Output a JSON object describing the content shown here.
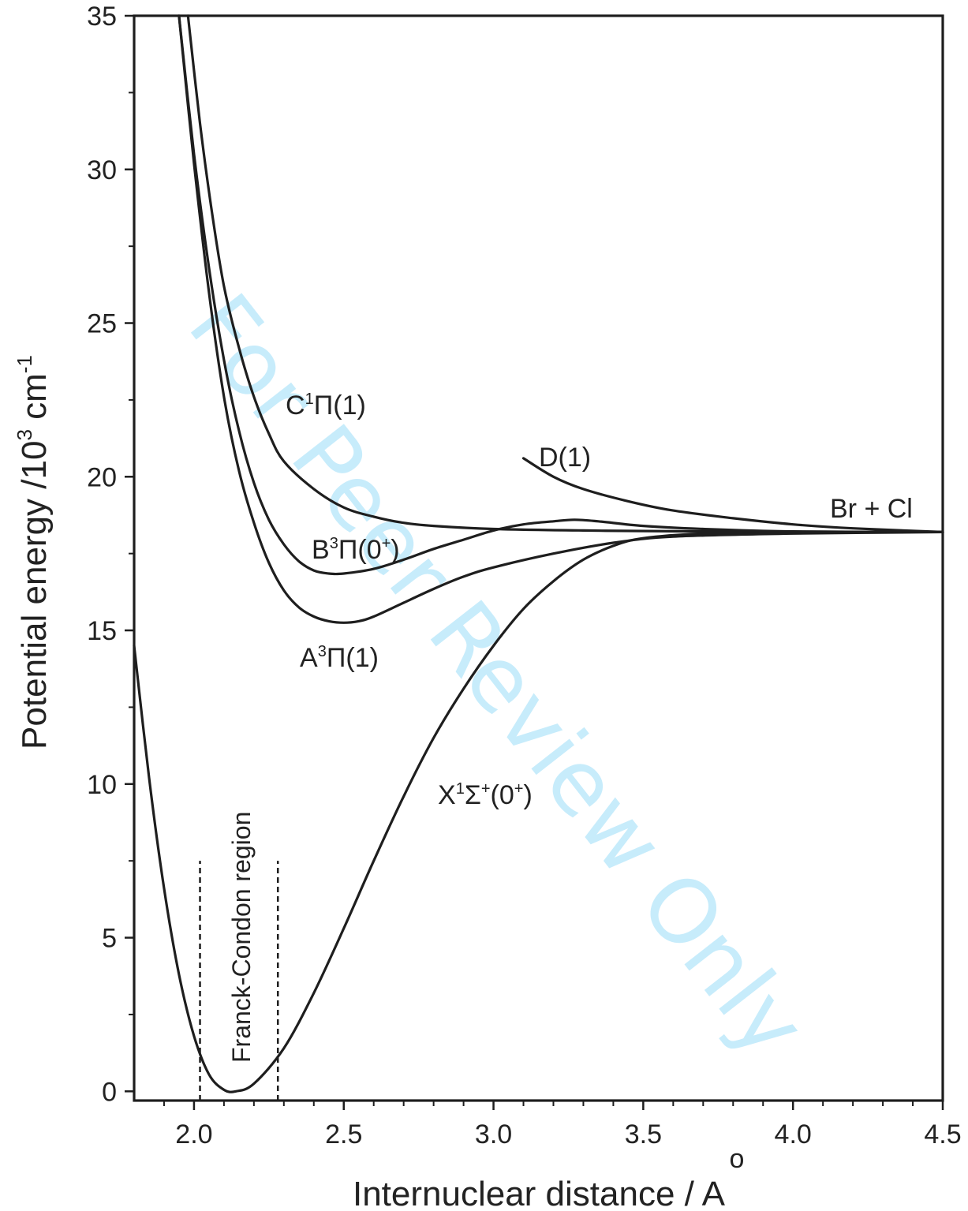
{
  "chart_data": {
    "type": "line",
    "xlabel_main": "Internuclear distance / A",
    "xlabel_ring": "o",
    "ylabel_parts": [
      "Potential energy /10",
      "3",
      " cm",
      "-1"
    ],
    "xlim": [
      1.8,
      4.5
    ],
    "ylim": [
      -0.3,
      35
    ],
    "x_ticks": [
      "2.0",
      "2.5",
      "3.0",
      "3.5",
      "4.0",
      "4.5"
    ],
    "y_ticks": [
      "0",
      "5",
      "10",
      "15",
      "20",
      "25",
      "30",
      "35"
    ],
    "asymptote_label": "Br + Cl",
    "annotation": "Franck-Condon region",
    "franck_condon": [
      2.02,
      2.28
    ],
    "series": [
      {
        "label_parts": [
          "X",
          "1",
          "Σ",
          "+",
          "(0",
          "+",
          ")"
        ],
        "points": [
          [
            1.8,
            14.5
          ],
          [
            1.85,
            10.2
          ],
          [
            1.9,
            6.6
          ],
          [
            1.95,
            3.8
          ],
          [
            2.0,
            1.8
          ],
          [
            2.05,
            0.55
          ],
          [
            2.1,
            0.05
          ],
          [
            2.14,
            0.0
          ],
          [
            2.2,
            0.25
          ],
          [
            2.3,
            1.4
          ],
          [
            2.4,
            3.2
          ],
          [
            2.5,
            5.3
          ],
          [
            2.6,
            7.5
          ],
          [
            2.7,
            9.6
          ],
          [
            2.8,
            11.5
          ],
          [
            2.9,
            13.1
          ],
          [
            3.0,
            14.5
          ],
          [
            3.1,
            15.7
          ],
          [
            3.2,
            16.6
          ],
          [
            3.3,
            17.3
          ],
          [
            3.4,
            17.75
          ],
          [
            3.5,
            18.0
          ],
          [
            3.7,
            18.15
          ],
          [
            4.0,
            18.2
          ],
          [
            4.5,
            18.2
          ]
        ]
      },
      {
        "label_parts": [
          "A",
          "3",
          "Π",
          "",
          "(1",
          "",
          ")"
        ],
        "points": [
          [
            1.95,
            35.0
          ],
          [
            2.0,
            30.2
          ],
          [
            2.05,
            26.0
          ],
          [
            2.1,
            22.6
          ],
          [
            2.15,
            20.2
          ],
          [
            2.2,
            18.5
          ],
          [
            2.25,
            17.2
          ],
          [
            2.3,
            16.3
          ],
          [
            2.35,
            15.75
          ],
          [
            2.4,
            15.45
          ],
          [
            2.45,
            15.3
          ],
          [
            2.5,
            15.25
          ],
          [
            2.55,
            15.3
          ],
          [
            2.6,
            15.45
          ],
          [
            2.7,
            15.9
          ],
          [
            2.8,
            16.35
          ],
          [
            2.9,
            16.75
          ],
          [
            3.0,
            17.05
          ],
          [
            3.2,
            17.5
          ],
          [
            3.4,
            17.85
          ],
          [
            3.6,
            18.05
          ],
          [
            4.0,
            18.15
          ],
          [
            4.5,
            18.2
          ]
        ]
      },
      {
        "label_parts": [
          "B",
          "3",
          "Π",
          "",
          "(0",
          "+",
          ")"
        ],
        "points": [
          [
            1.95,
            35.0
          ],
          [
            2.0,
            30.5
          ],
          [
            2.05,
            26.8
          ],
          [
            2.1,
            23.8
          ],
          [
            2.15,
            21.5
          ],
          [
            2.2,
            19.8
          ],
          [
            2.25,
            18.6
          ],
          [
            2.3,
            17.8
          ],
          [
            2.35,
            17.25
          ],
          [
            2.4,
            16.95
          ],
          [
            2.45,
            16.85
          ],
          [
            2.5,
            16.85
          ],
          [
            2.6,
            17.0
          ],
          [
            2.7,
            17.3
          ],
          [
            2.8,
            17.65
          ],
          [
            2.9,
            17.95
          ],
          [
            3.0,
            18.25
          ],
          [
            3.1,
            18.45
          ],
          [
            3.2,
            18.55
          ],
          [
            3.27,
            18.6
          ],
          [
            3.35,
            18.55
          ],
          [
            3.5,
            18.4
          ],
          [
            3.7,
            18.3
          ],
          [
            4.0,
            18.22
          ],
          [
            4.5,
            18.2
          ]
        ]
      },
      {
        "label_parts": [
          "C",
          "1",
          "Π",
          "",
          "(1",
          "",
          ")"
        ],
        "points": [
          [
            1.98,
            35.0
          ],
          [
            2.02,
            31.5
          ],
          [
            2.06,
            28.6
          ],
          [
            2.1,
            26.2
          ],
          [
            2.15,
            24.2
          ],
          [
            2.2,
            22.6
          ],
          [
            2.25,
            21.4
          ],
          [
            2.3,
            20.5
          ],
          [
            2.4,
            19.6
          ],
          [
            2.5,
            19.0
          ],
          [
            2.6,
            18.7
          ],
          [
            2.7,
            18.5
          ],
          [
            2.8,
            18.4
          ],
          [
            3.0,
            18.3
          ],
          [
            3.3,
            18.25
          ],
          [
            3.7,
            18.22
          ],
          [
            4.5,
            18.2
          ]
        ]
      },
      {
        "label_parts": [
          "D(1)",
          "",
          "",
          "",
          "",
          "",
          ""
        ],
        "points": [
          [
            3.1,
            20.6
          ],
          [
            3.2,
            20.0
          ],
          [
            3.3,
            19.6
          ],
          [
            3.45,
            19.2
          ],
          [
            3.6,
            18.9
          ],
          [
            3.8,
            18.65
          ],
          [
            4.0,
            18.45
          ],
          [
            4.2,
            18.32
          ],
          [
            4.5,
            18.2
          ]
        ]
      }
    ]
  },
  "watermark": "For Peer Review Only"
}
